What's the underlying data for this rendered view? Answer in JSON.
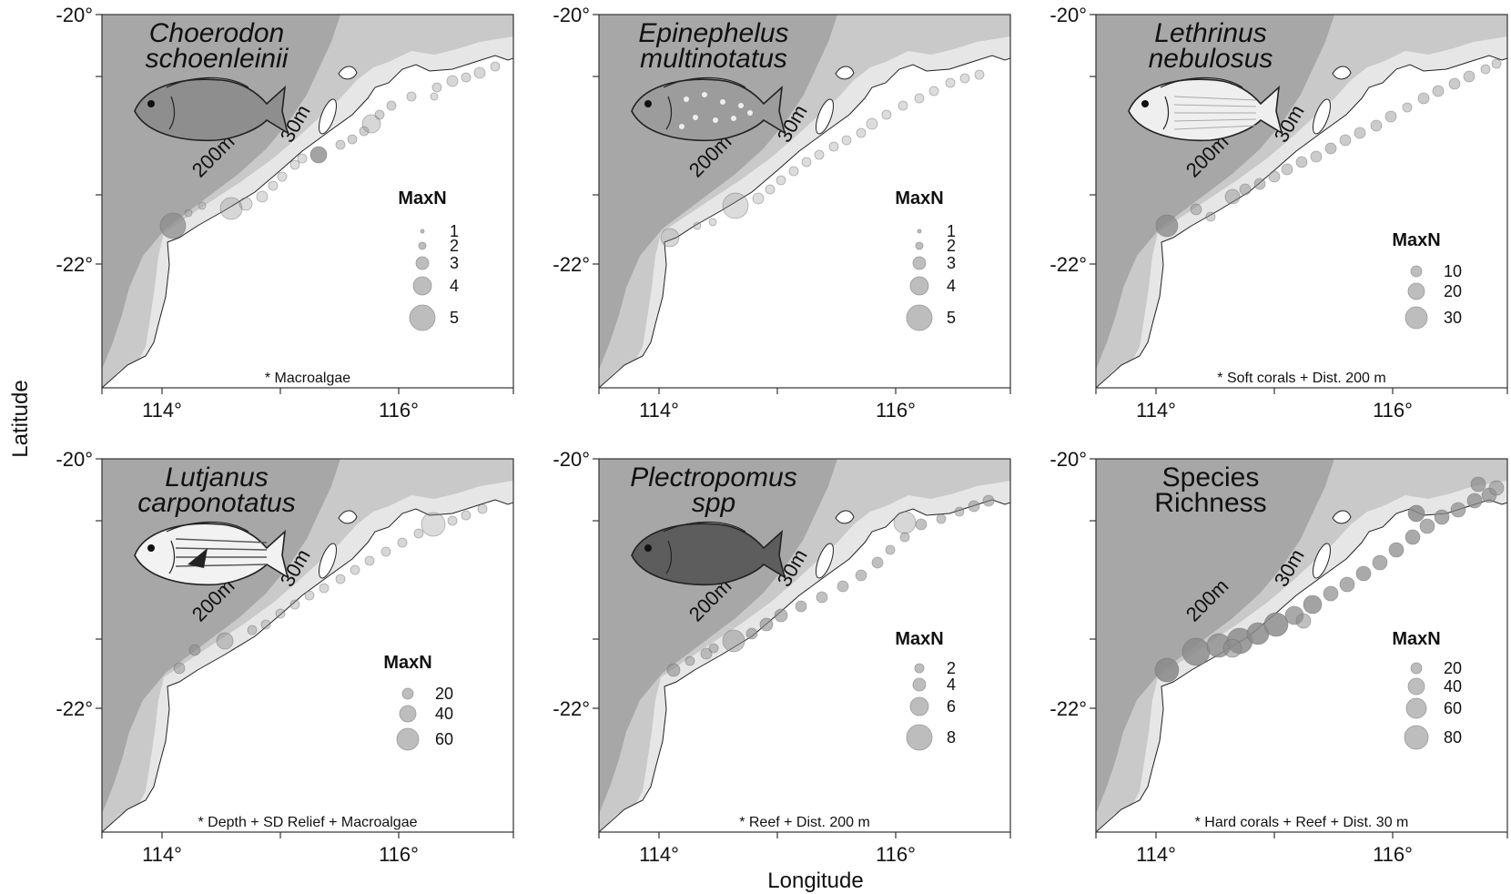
{
  "figure": {
    "xlabel": "Longitude",
    "ylabel": "Latitude",
    "x_ticks": [
      "114°",
      "116°"
    ],
    "y_ticks": [
      "-20°",
      "-22°"
    ],
    "depth_labels": [
      "200m",
      "30m"
    ],
    "legend_title": "MaxN",
    "colors": {
      "deep": "#a7a7a7",
      "shelf": "#c9c9c9",
      "inshore": "#e6e6e6",
      "land": "#ffffff",
      "bubble": "#8c8c8c"
    }
  },
  "panels": [
    {
      "title": [
        "Choerodon",
        "schoenleinii"
      ],
      "italic": true,
      "fish_icon": "choerodon-fish-icon",
      "legend": [
        "1",
        "2",
        "3",
        "4",
        "5"
      ],
      "model": "* Macroalgae"
    },
    {
      "title": [
        "Epinephelus",
        "multinotatus"
      ],
      "italic": true,
      "fish_icon": "epinephelus-fish-icon",
      "legend": [
        "1",
        "2",
        "3",
        "4",
        "5"
      ],
      "model": ""
    },
    {
      "title": [
        "Lethrinus",
        "nebulosus"
      ],
      "italic": true,
      "fish_icon": "lethrinus-fish-icon",
      "legend": [
        "10",
        "20",
        "30"
      ],
      "model": "* Soft corals + Dist. 200 m"
    },
    {
      "title": [
        "Lutjanus",
        "carponotatus"
      ],
      "italic": true,
      "fish_icon": "lutjanus-fish-icon",
      "legend": [
        "20",
        "40",
        "60"
      ],
      "model": "* Depth + SD Relief + Macroalgae"
    },
    {
      "title": [
        "Plectropomus",
        "spp"
      ],
      "italic": true,
      "fish_icon": "plectropomus-fish-icon",
      "legend": [
        "2",
        "4",
        "6",
        "8"
      ],
      "model": "* Reef + Dist. 200 m"
    },
    {
      "title": [
        "Species",
        "Richness"
      ],
      "italic": false,
      "fish_icon": "",
      "legend": [
        "20",
        "40",
        "60",
        "80"
      ],
      "model": "* Hard corals + Reef + Dist. 30 m"
    }
  ]
}
